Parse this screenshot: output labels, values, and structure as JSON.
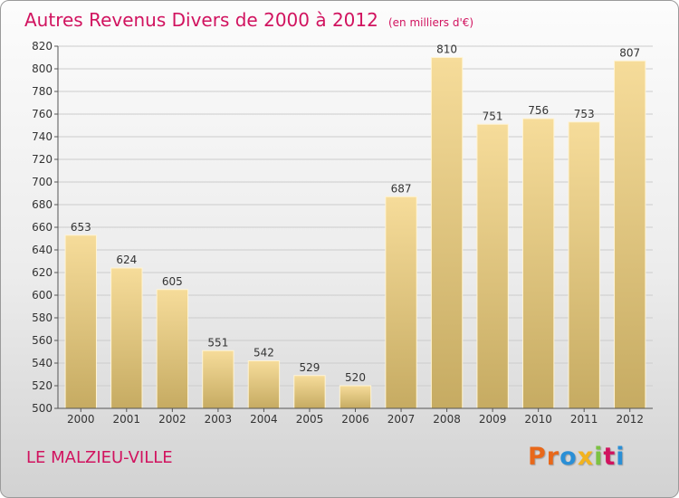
{
  "title": "Autres Revenus Divers de 2000 à 2012",
  "subtitle": "(en milliers d'€)",
  "commune": "LE MALZIEU-VILLE",
  "logo": {
    "letters": [
      "P",
      "r",
      "o",
      "x",
      "i",
      "t",
      "i"
    ],
    "colors": [
      "#e8681a",
      "#e8681a",
      "#2a8fd6",
      "#f2b31e",
      "#7cc242",
      "#d1135f",
      "#2a8fd6"
    ]
  },
  "colors": {
    "accent": "#d1135f",
    "bar_top": "#f6dc9a",
    "bar_bottom": "#c6ab62",
    "grid": "#cccccc",
    "axis": "#555555"
  },
  "chart_data": {
    "type": "bar",
    "title": "Autres Revenus Divers de 2000 à 2012",
    "subtitle": "(en milliers d'€)",
    "xlabel": "",
    "ylabel": "",
    "categories": [
      "2000",
      "2001",
      "2002",
      "2003",
      "2004",
      "2005",
      "2006",
      "2007",
      "2008",
      "2009",
      "2010",
      "2011",
      "2012"
    ],
    "values": [
      653,
      624,
      605,
      551,
      542,
      529,
      520,
      687,
      810,
      751,
      756,
      753,
      807
    ],
    "ylim": [
      500,
      820
    ],
    "yticks": [
      500,
      520,
      540,
      560,
      580,
      600,
      620,
      640,
      660,
      680,
      700,
      720,
      740,
      760,
      780,
      800,
      820
    ],
    "grid": true,
    "legend": "none"
  }
}
